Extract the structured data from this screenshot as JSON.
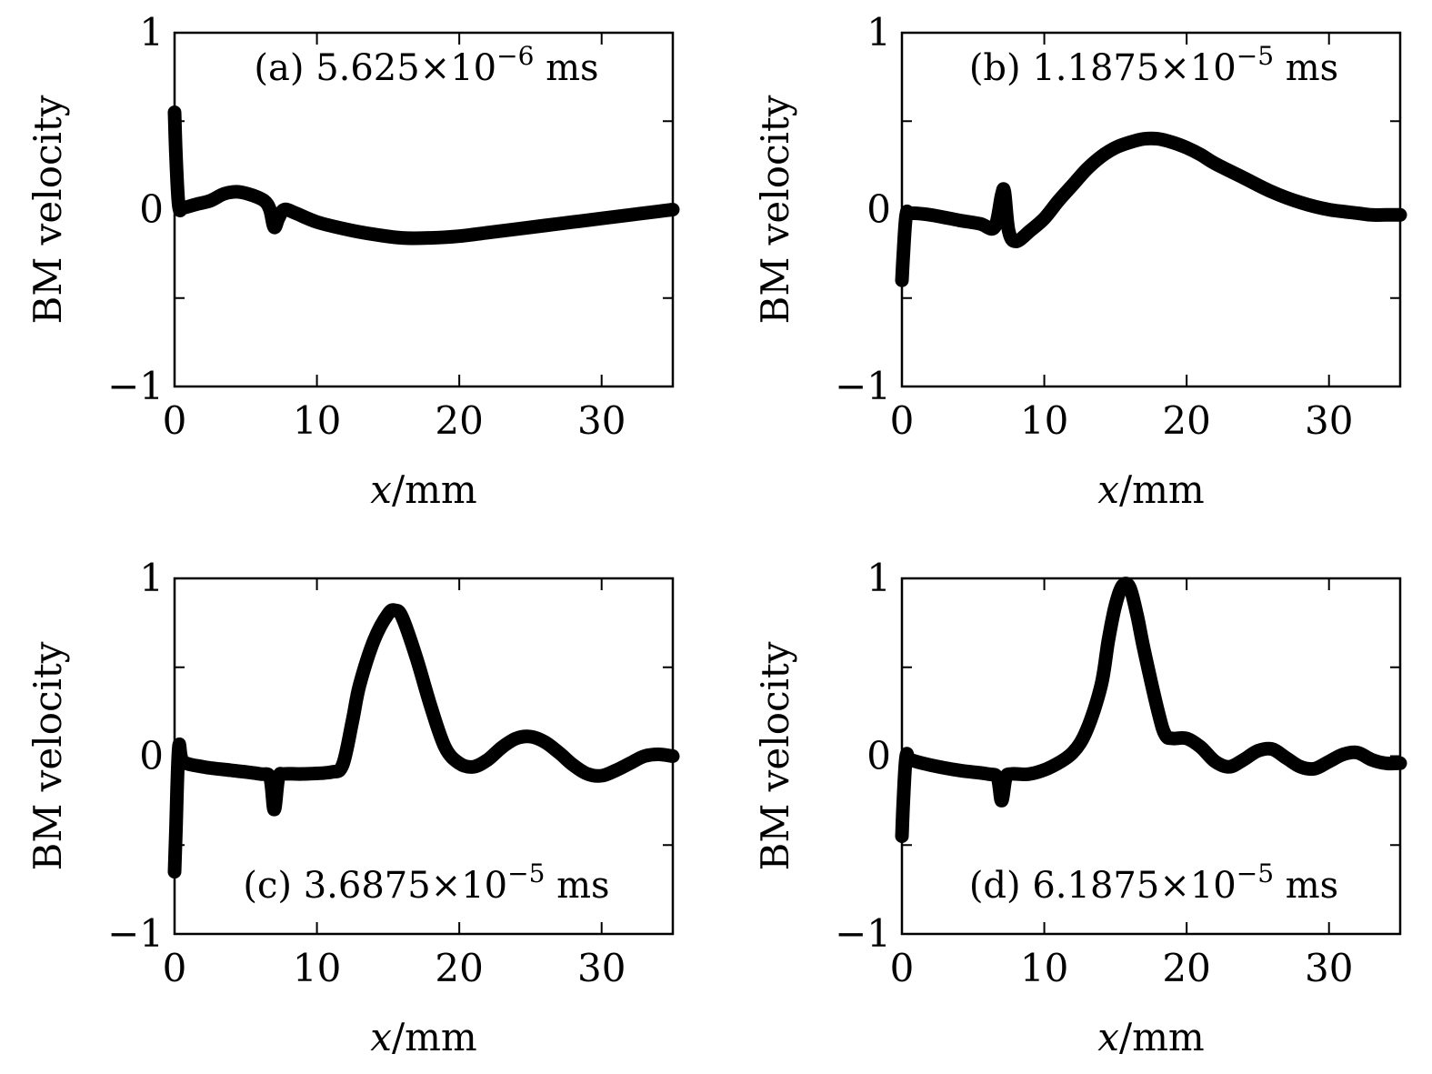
{
  "chart_data": [
    {
      "type": "line",
      "panel": "(a)",
      "annotation": {
        "label": "(a)",
        "mantissa": "5.625",
        "times": "×10",
        "exponent": "−6",
        "unit": "ms"
      },
      "annotation_position": "top",
      "xlabel": "x/mm",
      "ylabel": "BM velocity",
      "xlim": [
        0,
        35
      ],
      "ylim": [
        -1,
        1
      ],
      "x_ticks": [
        0,
        10,
        20,
        30
      ],
      "x_tick_labels": [
        "0",
        "10",
        "20",
        "30"
      ],
      "y_ticks": [
        -1,
        -0.5,
        0,
        0.5,
        1
      ],
      "y_tick_labels": [
        "−1",
        "",
        "0",
        "",
        "1"
      ],
      "series": [
        {
          "name": "BM velocity",
          "color": "#000000",
          "x": [
            0,
            0.1,
            0.3,
            0.6,
            1.5,
            2.5,
            3.5,
            4.5,
            5.5,
            6.3,
            6.7,
            7.0,
            7.3,
            7.7,
            8.5,
            10,
            12,
            14,
            16,
            18,
            20,
            22,
            24,
            26,
            28,
            30,
            32,
            34,
            35
          ],
          "y": [
            0.55,
            0.3,
            0.02,
            0.01,
            0.03,
            0.05,
            0.09,
            0.1,
            0.08,
            0.05,
            0.0,
            -0.1,
            -0.05,
            0.0,
            -0.02,
            -0.07,
            -0.11,
            -0.14,
            -0.16,
            -0.16,
            -0.15,
            -0.13,
            -0.11,
            -0.09,
            -0.07,
            -0.05,
            -0.03,
            -0.01,
            0.0
          ]
        }
      ]
    },
    {
      "type": "line",
      "panel": "(b)",
      "annotation": {
        "label": "(b)",
        "mantissa": "1.1875",
        "times": "×10",
        "exponent": "−5",
        "unit": "ms"
      },
      "annotation_position": "top",
      "xlabel": "x/mm",
      "ylabel": "BM velocity",
      "xlim": [
        0,
        35
      ],
      "ylim": [
        -1,
        1
      ],
      "x_ticks": [
        0,
        10,
        20,
        30
      ],
      "x_tick_labels": [
        "0",
        "10",
        "20",
        "30"
      ],
      "y_ticks": [
        -1,
        -0.5,
        0,
        0.5,
        1
      ],
      "y_tick_labels": [
        "−1",
        "",
        "0",
        "",
        "1"
      ],
      "series": [
        {
          "name": "BM velocity",
          "color": "#000000",
          "x": [
            0,
            0.1,
            0.3,
            0.6,
            2,
            4,
            5.5,
            6.5,
            7.0,
            7.2,
            7.5,
            8.0,
            9,
            10,
            11,
            12,
            13,
            14,
            15,
            16,
            17,
            18,
            19,
            20,
            21,
            22,
            24,
            26,
            28,
            30,
            32,
            33,
            34,
            35
          ],
          "y": [
            -0.4,
            -0.25,
            -0.03,
            -0.02,
            -0.03,
            -0.06,
            -0.08,
            -0.1,
            0.08,
            0.1,
            -0.12,
            -0.18,
            -0.12,
            -0.05,
            0.05,
            0.14,
            0.23,
            0.3,
            0.35,
            0.38,
            0.4,
            0.4,
            0.38,
            0.35,
            0.31,
            0.26,
            0.18,
            0.1,
            0.04,
            0.0,
            -0.02,
            -0.03,
            -0.03,
            -0.03
          ]
        }
      ]
    },
    {
      "type": "line",
      "panel": "(c)",
      "annotation": {
        "label": "(c)",
        "mantissa": "3.6875",
        "times": "×10",
        "exponent": "−5",
        "unit": "ms"
      },
      "annotation_position": "bottom",
      "xlabel": "x/mm",
      "ylabel": "BM velocity",
      "xlim": [
        0,
        35
      ],
      "ylim": [
        -1,
        1
      ],
      "x_ticks": [
        0,
        10,
        20,
        30
      ],
      "x_tick_labels": [
        "0",
        "10",
        "20",
        "30"
      ],
      "y_ticks": [
        -1,
        -0.5,
        0,
        0.5,
        1
      ],
      "y_tick_labels": [
        "−1",
        "",
        "0",
        "",
        "1"
      ],
      "series": [
        {
          "name": "BM velocity",
          "color": "#000000",
          "x": [
            0,
            0.1,
            0.3,
            0.6,
            2,
            4,
            6,
            6.7,
            7.0,
            7.3,
            7.7,
            9,
            11,
            11.8,
            12.5,
            13,
            14,
            15,
            15.5,
            16,
            17,
            18,
            19,
            20,
            21,
            22,
            23,
            24,
            25,
            26,
            27,
            28,
            29,
            30,
            31,
            32,
            33,
            34,
            35
          ],
          "y": [
            -0.65,
            -0.4,
            0.05,
            -0.03,
            -0.06,
            -0.08,
            -0.1,
            -0.12,
            -0.3,
            -0.12,
            -0.1,
            -0.1,
            -0.09,
            -0.05,
            0.2,
            0.4,
            0.65,
            0.8,
            0.82,
            0.78,
            0.55,
            0.28,
            0.05,
            -0.04,
            -0.06,
            -0.02,
            0.05,
            0.1,
            0.11,
            0.08,
            0.02,
            -0.05,
            -0.1,
            -0.11,
            -0.08,
            -0.04,
            0.0,
            0.01,
            0.0
          ]
        }
      ]
    },
    {
      "type": "line",
      "panel": "(d)",
      "annotation": {
        "label": "(d)",
        "mantissa": "6.1875",
        "times": "×10",
        "exponent": "−5",
        "unit": "ms"
      },
      "annotation_position": "bottom",
      "xlabel": "x/mm",
      "ylabel": "BM velocity",
      "xlim": [
        0,
        35
      ],
      "ylim": [
        -1,
        1
      ],
      "x_ticks": [
        0,
        10,
        20,
        30
      ],
      "x_tick_labels": [
        "0",
        "10",
        "20",
        "30"
      ],
      "y_ticks": [
        -1,
        -0.5,
        0,
        0.5,
        1
      ],
      "y_tick_labels": [
        "−1",
        "",
        "0",
        "",
        "1"
      ],
      "series": [
        {
          "name": "BM velocity",
          "color": "#000000",
          "x": [
            0,
            0.1,
            0.3,
            0.6,
            2,
            4,
            6,
            6.7,
            7.0,
            7.3,
            7.7,
            9,
            10.5,
            12,
            13,
            14,
            14.5,
            15,
            15.5,
            16,
            16.5,
            17,
            18,
            18.5,
            19,
            20,
            21,
            22,
            23,
            24,
            25,
            26,
            27,
            28,
            29,
            30,
            31,
            32,
            33,
            34,
            35
          ],
          "y": [
            -0.45,
            -0.25,
            0.0,
            -0.02,
            -0.05,
            -0.08,
            -0.1,
            -0.12,
            -0.25,
            -0.12,
            -0.1,
            -0.1,
            -0.06,
            0.02,
            0.15,
            0.4,
            0.65,
            0.85,
            0.96,
            0.95,
            0.8,
            0.6,
            0.25,
            0.12,
            0.1,
            0.1,
            0.05,
            -0.03,
            -0.06,
            -0.02,
            0.03,
            0.04,
            -0.01,
            -0.06,
            -0.07,
            -0.03,
            0.01,
            0.02,
            -0.02,
            -0.04,
            -0.04
          ]
        }
      ]
    }
  ]
}
